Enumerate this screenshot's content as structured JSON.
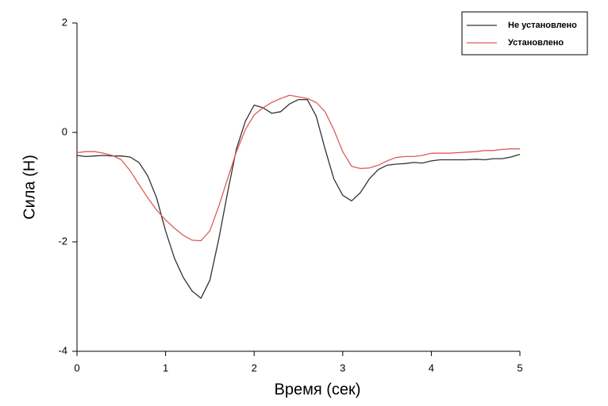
{
  "chart_data": {
    "type": "line",
    "x_label": "Время (сек)",
    "y_label": "Сила (Н)",
    "x": [
      0,
      0.1,
      0.2,
      0.3,
      0.4,
      0.5,
      0.6,
      0.7,
      0.8,
      0.9,
      1.0,
      1.1,
      1.2,
      1.3,
      1.4,
      1.5,
      1.6,
      1.7,
      1.8,
      1.9,
      2.0,
      2.1,
      2.2,
      2.3,
      2.4,
      2.5,
      2.6,
      2.7,
      2.8,
      2.9,
      3.0,
      3.1,
      3.2,
      3.3,
      3.4,
      3.5,
      3.6,
      3.7,
      3.8,
      3.9,
      4.0,
      4.1,
      4.2,
      4.3,
      4.4,
      4.5,
      4.6,
      4.7,
      4.8,
      4.9,
      5.0
    ],
    "series": [
      {
        "name": "Не установлено",
        "color": "#333333",
        "values": [
          -0.42,
          -0.44,
          -0.43,
          -0.42,
          -0.43,
          -0.43,
          -0.45,
          -0.55,
          -0.8,
          -1.2,
          -1.8,
          -2.3,
          -2.65,
          -2.9,
          -3.03,
          -2.7,
          -1.95,
          -1.1,
          -0.3,
          0.2,
          0.5,
          0.45,
          0.35,
          0.38,
          0.52,
          0.6,
          0.6,
          0.3,
          -0.3,
          -0.85,
          -1.15,
          -1.25,
          -1.1,
          -0.85,
          -0.68,
          -0.6,
          -0.58,
          -0.57,
          -0.55,
          -0.56,
          -0.52,
          -0.5,
          -0.5,
          -0.5,
          -0.5,
          -0.49,
          -0.5,
          -0.48,
          -0.48,
          -0.45,
          -0.4
        ]
      },
      {
        "name": "Установлено",
        "color": "#e05a5a",
        "values": [
          -0.37,
          -0.35,
          -0.35,
          -0.38,
          -0.42,
          -0.5,
          -0.7,
          -0.95,
          -1.2,
          -1.42,
          -1.6,
          -1.75,
          -1.88,
          -1.97,
          -1.98,
          -1.8,
          -1.35,
          -0.85,
          -0.35,
          0.05,
          0.32,
          0.45,
          0.55,
          0.62,
          0.68,
          0.65,
          0.62,
          0.55,
          0.38,
          0.05,
          -0.35,
          -0.62,
          -0.66,
          -0.65,
          -0.6,
          -0.52,
          -0.46,
          -0.44,
          -0.44,
          -0.42,
          -0.38,
          -0.38,
          -0.38,
          -0.37,
          -0.36,
          -0.35,
          -0.33,
          -0.33,
          -0.31,
          -0.3,
          -0.3
        ]
      }
    ],
    "xlim": [
      0,
      5
    ],
    "xticks": [
      0,
      1,
      2,
      3,
      4,
      5
    ],
    "ylim": [
      -4,
      2
    ],
    "yticks": [
      -4,
      -2,
      0,
      2
    ],
    "grid": false,
    "legend": "upper right"
  }
}
